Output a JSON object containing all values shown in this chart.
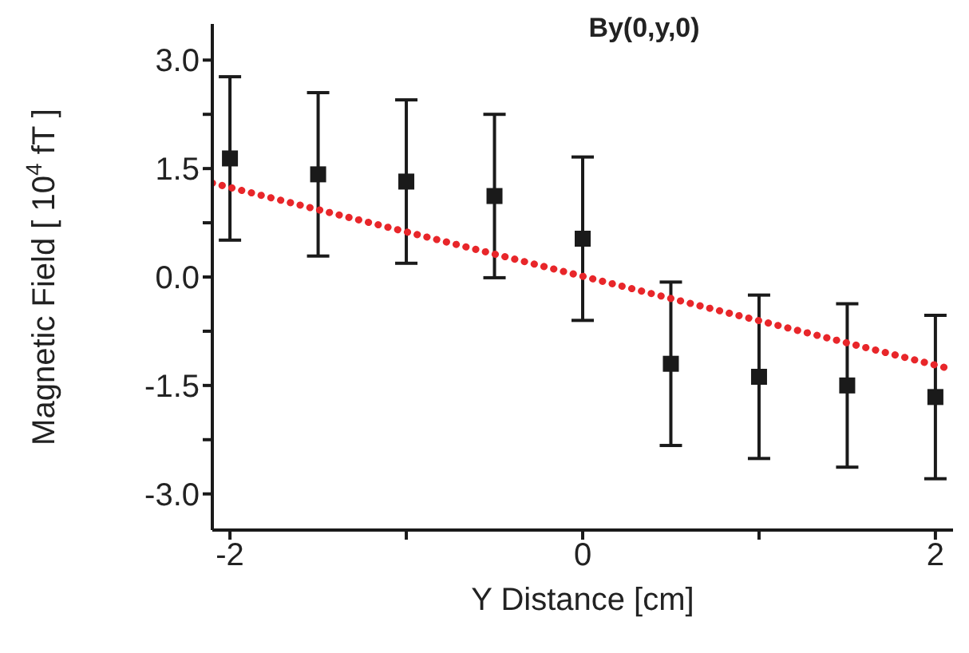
{
  "chart_data": {
    "type": "scatter",
    "title": "By(0,y,0)",
    "xlabel": "Y Distance [cm]",
    "ylabel": "Magnetic Field [ 10$^{4}$ fT ]",
    "x": [
      -2,
      -1.5,
      -1,
      -0.5,
      0,
      0.5,
      1,
      1.5,
      2
    ],
    "series": [
      {
        "color": "#1a1a1a",
        "marker": "square",
        "values": [
          1.64,
          1.42,
          1.32,
          1.12,
          0.53,
          -1.2,
          -1.38,
          -1.5,
          -1.66
        ],
        "errors": [
          1.13,
          1.13,
          1.13,
          1.13,
          1.13,
          1.13,
          1.13,
          1.13,
          1.13
        ]
      },
      {
        "type": "line",
        "color": "#e8262a",
        "line_style": "dotted",
        "marker": "none",
        "x": [
          -2.1,
          2.1
        ],
        "values": [
          1.3,
          -1.28
        ]
      }
    ],
    "xlim": [
      -2.1,
      2.1
    ],
    "ylim": [
      -3.5,
      3.5
    ],
    "xticks": [
      -2,
      {
        "value": -1,
        "label": null
      },
      0,
      {
        "value": 1,
        "label": null
      },
      2
    ],
    "yticks": [
      {
        "value": -3,
        "label": "-3.0"
      },
      {
        "value": -2.25,
        "label": null
      },
      {
        "value": -1.5,
        "label": "-1.5"
      },
      {
        "value": -0.75,
        "label": null
      },
      {
        "value": 0,
        "label": "0.0"
      },
      {
        "value": 0.75,
        "label": null
      },
      {
        "value": 1.5,
        "label": "1.5"
      },
      {
        "value": 2.25,
        "label": null
      },
      {
        "value": 3,
        "label": "3.0"
      }
    ],
    "grid": false,
    "legend": false
  }
}
